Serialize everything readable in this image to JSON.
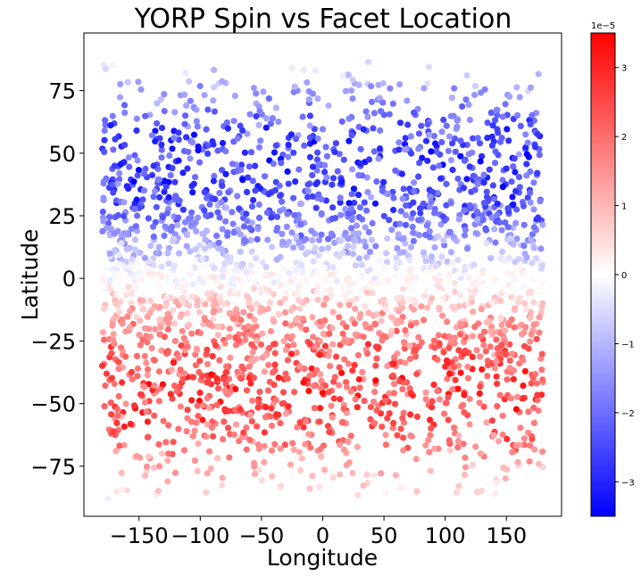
{
  "chart_data": {
    "type": "scatter",
    "title": "YORP Spin vs Facet Location",
    "xlabel": "Longitude",
    "ylabel": "Latitude",
    "xlim": [
      -195,
      195
    ],
    "ylim": [
      -95,
      98
    ],
    "x_ticks": [
      -150,
      -100,
      -50,
      0,
      50,
      100,
      150
    ],
    "x_tick_labels": [
      "−150",
      "−100",
      "−50",
      "0",
      "50",
      "100",
      "150"
    ],
    "y_ticks": [
      -75,
      -50,
      -25,
      0,
      25,
      50,
      75
    ],
    "y_tick_labels": [
      "−75",
      "−50",
      "−25",
      "0",
      "25",
      "50",
      "75"
    ],
    "grid": false,
    "colorbar": {
      "colormap": "bwr",
      "vmin": -3.5e-05,
      "vmax": 3.5e-05,
      "offset_text": "1e−5",
      "ticks": [
        -3,
        -2,
        -1,
        0,
        1,
        2,
        3
      ],
      "tick_labels": [
        "−3",
        "−2",
        "−1",
        "0",
        "1",
        "2",
        "3"
      ],
      "color_low": "#0000ff",
      "color_mid": "#ffffff",
      "color_high": "#ff0000"
    },
    "points_summary": {
      "longitude_range": [
        -180,
        180
      ],
      "latitude_range": [
        -88,
        88
      ],
      "trend": "positive latitudes mostly blue (negative spin, down to about -3e-5 near latitude 30); negative latitudes mostly red (positive spin, up to about 3e-5 near latitude -25 to -35); values near zero close to the equator and near the poles"
    }
  }
}
